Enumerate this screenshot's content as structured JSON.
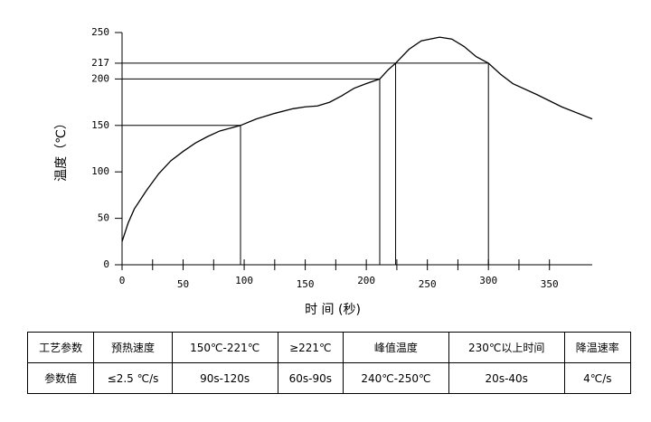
{
  "chart_data": {
    "type": "line",
    "x_label": "时 间 (秒)",
    "y_label": "温度（℃）",
    "xlim": [
      0,
      385
    ],
    "xticks": [
      0,
      50,
      100,
      150,
      200,
      250,
      300,
      350
    ],
    "ylim": [
      0,
      250
    ],
    "yticks": [
      0,
      50,
      100,
      150,
      200,
      217,
      250
    ],
    "grid": false,
    "series": [
      {
        "color": "#000000",
        "x": [
          0,
          5,
          10,
          20,
          30,
          40,
          50,
          60,
          70,
          80,
          97,
          110,
          125,
          140,
          150,
          160,
          170,
          180,
          190,
          200,
          211,
          218,
          224,
          235,
          245,
          260,
          270,
          280,
          290,
          300,
          310,
          320,
          340,
          360,
          385
        ],
        "values": [
          25,
          45,
          60,
          80,
          98,
          112,
          122,
          131,
          138,
          144,
          150,
          157,
          163,
          168,
          170,
          171,
          175,
          182,
          190,
          195,
          200,
          210,
          217,
          232,
          241,
          245,
          243,
          235,
          224,
          217,
          205,
          195,
          183,
          170,
          157
        ]
      }
    ],
    "reference_lines": [
      {
        "y": 150,
        "x": [
          97
        ]
      },
      {
        "y": 200,
        "x": [
          211
        ]
      },
      {
        "y": 217,
        "x": [
          224,
          300
        ]
      }
    ]
  },
  "table": {
    "header": [
      "工艺参数",
      "预热速度",
      "150℃-221℃",
      "≥221℃",
      "峰值温度",
      "230℃以上时间",
      "降温速率"
    ],
    "rows": [
      [
        "参数值",
        "≤2.5 ℃/s",
        "90s-120s",
        "60s-90s",
        "240℃-250℃",
        "20s-40s",
        "4℃/s"
      ]
    ]
  }
}
